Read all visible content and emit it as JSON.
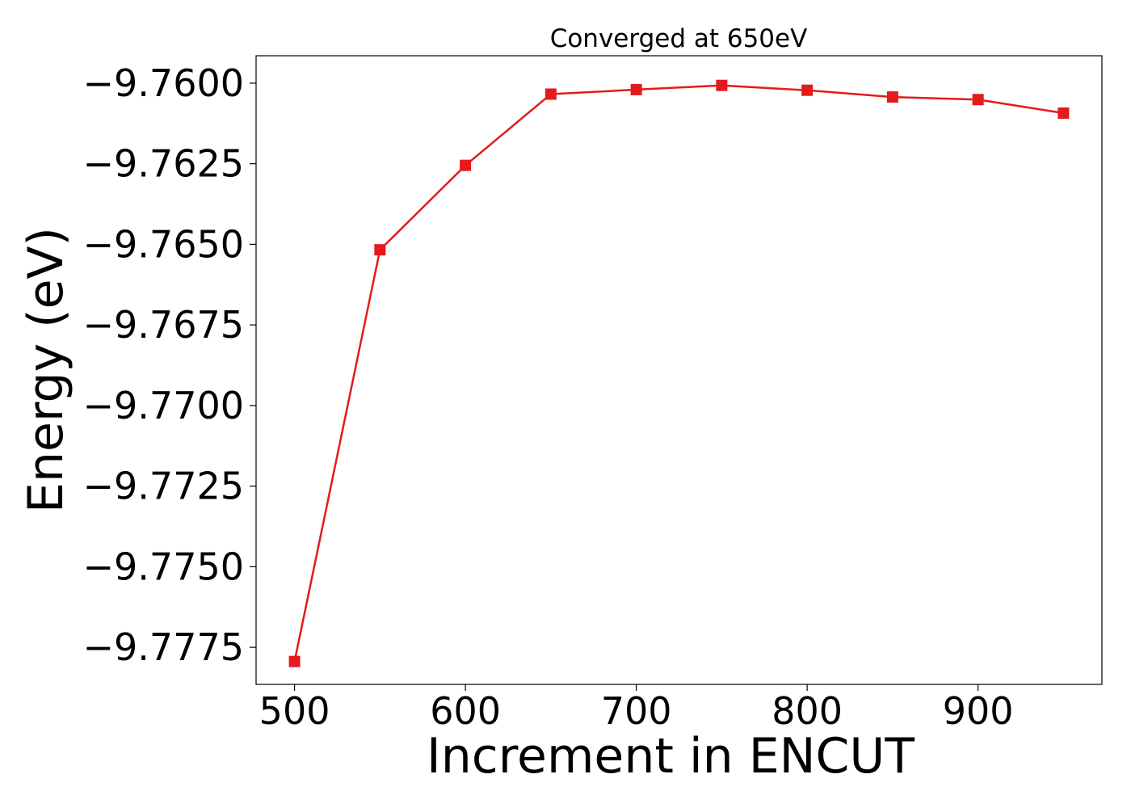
{
  "chart_data": {
    "type": "line",
    "title": "Converged at 650eV",
    "xlabel": "Increment in ENCUT",
    "ylabel": "Energy (eV)",
    "x": [
      500,
      550,
      600,
      650,
      700,
      750,
      800,
      850,
      900,
      950
    ],
    "series": [
      {
        "values": [
          -9.77794,
          -9.76517,
          -9.76255,
          -9.76034,
          -9.7602,
          -9.76007,
          -9.76022,
          -9.76043,
          -9.76051,
          -9.76093
        ],
        "color": "#e41a1c",
        "marker": "square"
      }
    ],
    "xlim": [
      477.5,
      972.5
    ],
    "ylim": [
      -9.77865,
      -9.75915
    ],
    "xticks": [
      500,
      600,
      700,
      800,
      900
    ],
    "xtick_labels": [
      "500",
      "600",
      "700",
      "800",
      "900"
    ],
    "yticks": [
      -9.76,
      -9.7625,
      -9.765,
      -9.7675,
      -9.77,
      -9.7725,
      -9.775,
      -9.7775
    ],
    "ytick_labels": [
      "−9.7600",
      "−9.7625",
      "−9.7650",
      "−9.7675",
      "−9.7700",
      "−9.7725",
      "−9.7750",
      "−9.7775"
    ],
    "grid": false,
    "legend": false
  }
}
